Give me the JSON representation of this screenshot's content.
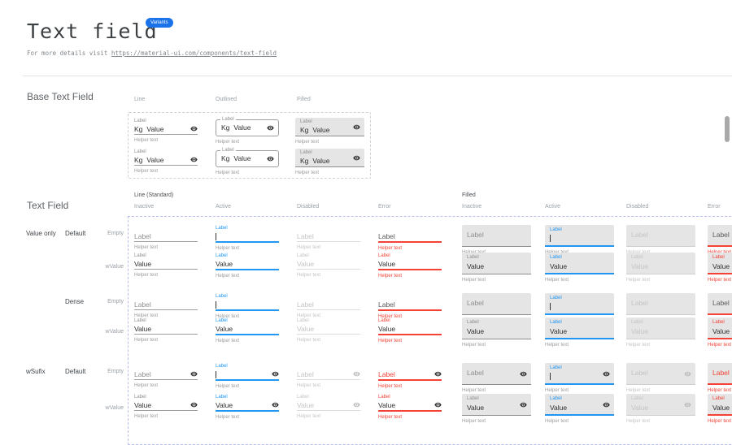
{
  "colors": {
    "accent_blue": "#2196F3",
    "error_red": "#f44336",
    "badge_blue": "#1a73e8",
    "text_dark": "#3c4043",
    "label_gray": "#8f8f8f",
    "disabled_gray": "#c4c4c4",
    "helper_gray": "#9b9b9b",
    "filled_bg": "#e5e5e5",
    "underline_gray": "#9e9e9e"
  },
  "header": {
    "title": "Text field",
    "badge": "Variants",
    "subtitle_prefix": "For more details visit ",
    "subtitle_link": "https://material-ui.com/components/text-field"
  },
  "base_section": {
    "title": "Base Text Field",
    "columns": [
      "Line",
      "Outlined",
      "Filled"
    ],
    "field": {
      "label": "Label",
      "prefix": "Kg",
      "value": "Value",
      "helper": "Helper text"
    }
  },
  "grid_section": {
    "title": "Text Field",
    "groups": [
      "Line (Standard)",
      "Filled"
    ],
    "states": [
      "Inactive",
      "Active",
      "Disabled",
      "Error"
    ],
    "row_groups": [
      {
        "group": "Value only",
        "size": "Default",
        "variants": [
          "Empty",
          "wValue"
        ]
      },
      {
        "group": "",
        "size": "Dense",
        "variants": [
          "Empty",
          "wValue"
        ]
      },
      {
        "group": "wSufix",
        "size": "Default",
        "variants": [
          "Empty",
          "wValue"
        ]
      }
    ],
    "rows": [
      {
        "kind": "empty",
        "suffix": false,
        "error_label_style": "dark"
      },
      {
        "kind": "value",
        "suffix": false,
        "error_label_style": "red"
      },
      {
        "kind": "empty",
        "suffix": false,
        "error_label_style": "dark"
      },
      {
        "kind": "value",
        "suffix": false,
        "error_label_style": "red"
      },
      {
        "kind": "empty",
        "suffix": true,
        "error_label_style": "red"
      },
      {
        "kind": "value",
        "suffix": true,
        "error_label_style": "red"
      }
    ],
    "field": {
      "label": "Label",
      "value": "Value",
      "helper": "Helper text"
    },
    "icons": {
      "suffix": "visibility-icon"
    }
  }
}
